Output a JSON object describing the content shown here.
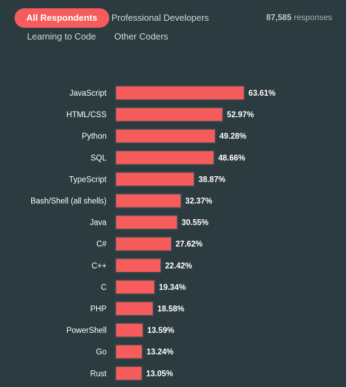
{
  "tabs": [
    {
      "label": "All Respondents",
      "active": true
    },
    {
      "label": "Professional Developers",
      "active": false
    },
    {
      "label": "Learning to Code",
      "active": false
    },
    {
      "label": "Other Coders",
      "active": false
    }
  ],
  "responses": {
    "count": "87,585",
    "label": "responses"
  },
  "colors": {
    "background": "#2b3b3f",
    "bar": "#f75c5c",
    "active_tab": "#f75c5c",
    "label_text": "#ffffff"
  },
  "chart_data": {
    "type": "bar",
    "orientation": "horizontal",
    "categories": [
      "JavaScript",
      "HTML/CSS",
      "Python",
      "SQL",
      "TypeScript",
      "Bash/Shell (all shells)",
      "Java",
      "C#",
      "C++",
      "C",
      "PHP",
      "PowerShell",
      "Go",
      "Rust"
    ],
    "values": [
      63.61,
      52.97,
      49.28,
      48.66,
      38.87,
      32.37,
      30.55,
      27.62,
      22.42,
      19.34,
      18.58,
      13.59,
      13.24,
      13.05
    ],
    "value_labels": [
      "63.61%",
      "52.97%",
      "49.28%",
      "48.66%",
      "38.87%",
      "32.37%",
      "30.55%",
      "27.62%",
      "22.42%",
      "19.34%",
      "18.58%",
      "13.59%",
      "13.24%",
      "13.05%"
    ],
    "xlim": [
      0,
      100
    ],
    "grid": false,
    "legend": "none"
  }
}
